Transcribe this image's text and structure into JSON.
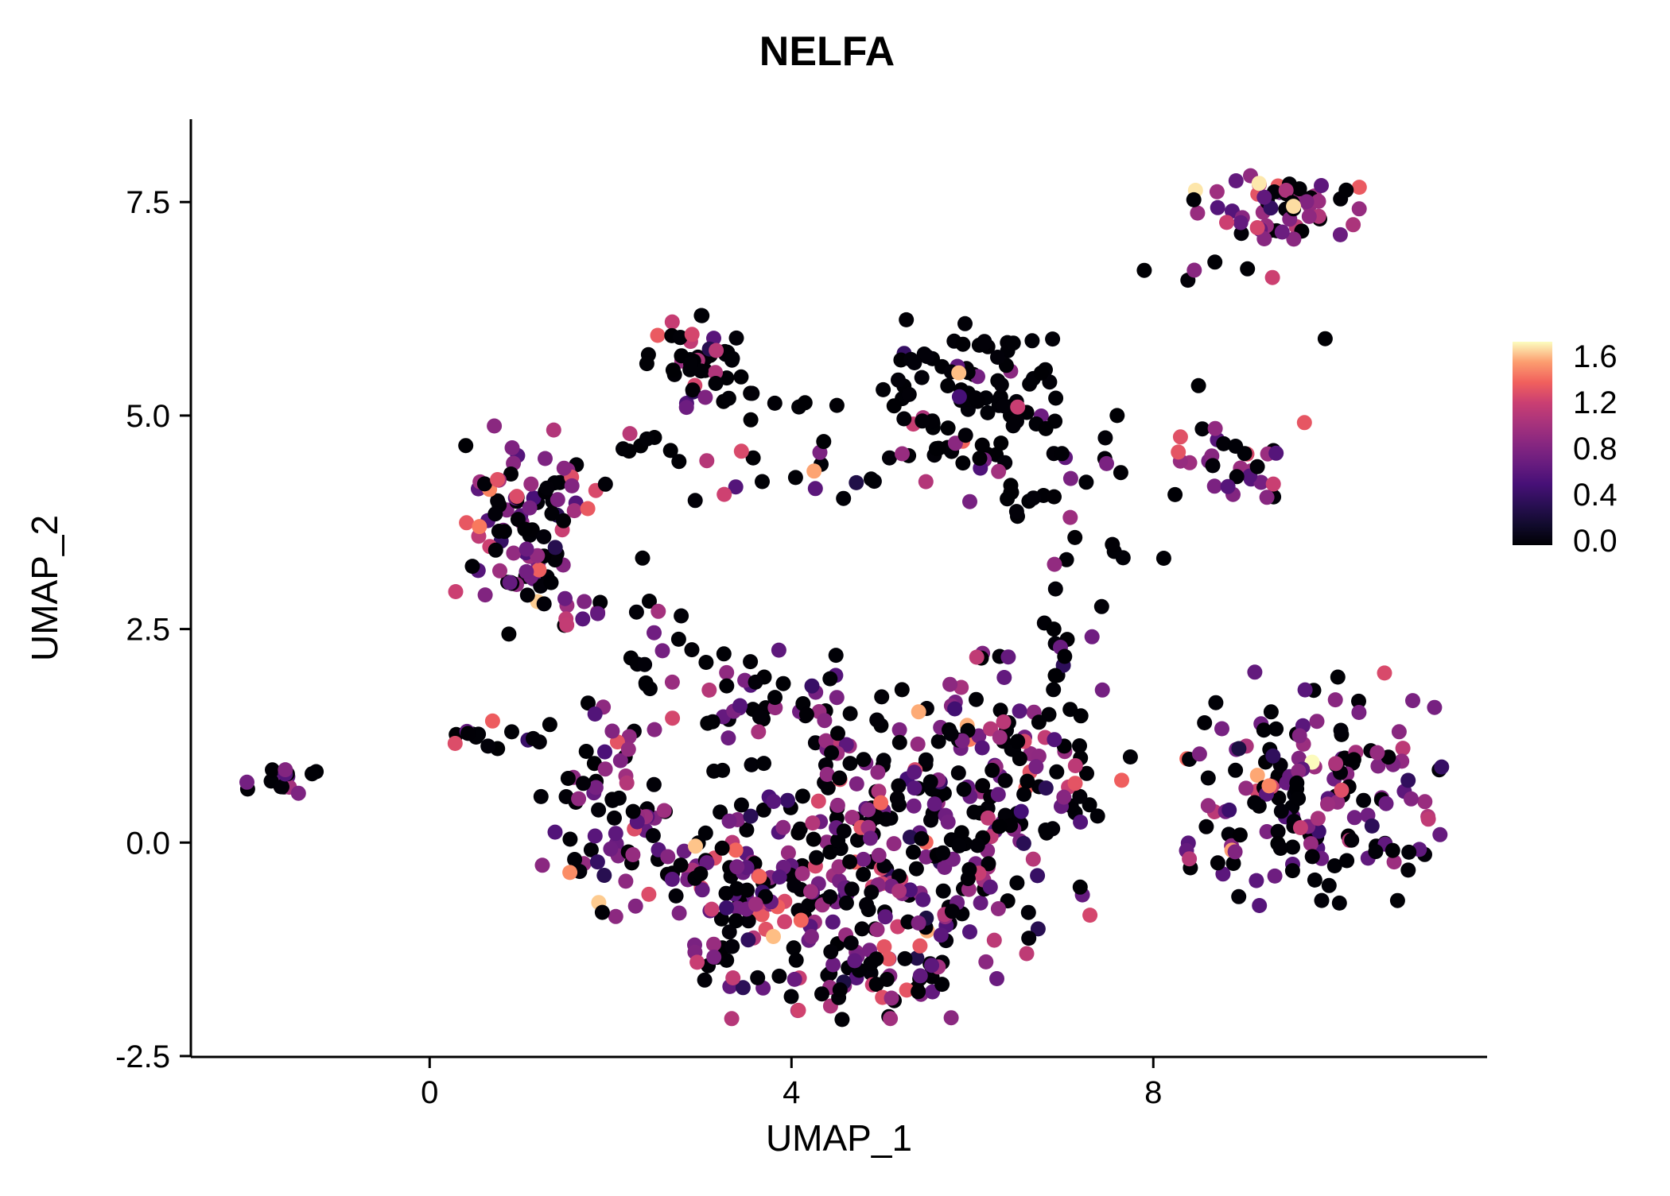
{
  "title": "NELFA",
  "background_color": "#ffffff",
  "seed": 42,
  "chart_data": {
    "type": "scatter",
    "title": "NELFA",
    "xlabel": "UMAP_1",
    "ylabel": "UMAP_2",
    "xlim": [
      -2.64,
      11.69
    ],
    "ylim": [
      -2.51,
      8.47
    ],
    "grid": false,
    "point_radius_px": 9.5,
    "x_ticks": [
      {
        "v": 0,
        "label": "0"
      },
      {
        "v": 4,
        "label": "4"
      },
      {
        "v": 8,
        "label": "8"
      }
    ],
    "y_ticks": [
      {
        "v": -2.5,
        "label": "-2.5"
      },
      {
        "v": 0.0,
        "label": "0.0"
      },
      {
        "v": 2.5,
        "label": "2.5"
      },
      {
        "v": 5.0,
        "label": "5.0"
      },
      {
        "v": 7.5,
        "label": "7.5"
      }
    ],
    "colorbar": {
      "position": "right",
      "domain": [
        0.0,
        1.65
      ],
      "tick_labels": [
        "1.6",
        "1.2",
        "0.8",
        "0.4",
        "0.0"
      ]
    },
    "colormap": {
      "name": "magma",
      "stops": [
        [
          0.0,
          "#000004"
        ],
        [
          0.14,
          "#180f3d"
        ],
        [
          0.29,
          "#440f76"
        ],
        [
          0.43,
          "#721f81"
        ],
        [
          0.57,
          "#9e2f7f"
        ],
        [
          0.71,
          "#cd4071"
        ],
        [
          0.8,
          "#f1605d"
        ],
        [
          0.86,
          "#fa7f5e"
        ],
        [
          0.93,
          "#feb47b"
        ],
        [
          1.0,
          "#fcfdbf"
        ]
      ]
    },
    "value_bands": {
      "zero": [
        0.0,
        0.02
      ],
      "low": [
        0.25,
        0.55
      ],
      "mid": [
        0.55,
        0.95
      ],
      "high": [
        0.95,
        1.35
      ],
      "peak": [
        1.35,
        1.65
      ]
    },
    "band_order": [
      "zero",
      "low",
      "mid",
      "high",
      "peak"
    ],
    "clusters": [
      {
        "name": "top-right-main",
        "center": [
          9.45,
          7.45
        ],
        "spread": [
          0.55,
          0.25
        ],
        "n": 55,
        "weights": [
          0.45,
          0.05,
          0.25,
          0.2,
          0.05
        ]
      },
      {
        "name": "top-right-fringe",
        "center": [
          9.0,
          6.6
        ],
        "spread": [
          0.35,
          0.25
        ],
        "n": 5,
        "weights": [
          0.7,
          0.0,
          0.2,
          0.1,
          0.0
        ]
      },
      {
        "name": "right-upper",
        "center": [
          8.9,
          4.45
        ],
        "spread": [
          0.4,
          0.3
        ],
        "n": 32,
        "weights": [
          0.4,
          0.05,
          0.3,
          0.25,
          0.0
        ]
      },
      {
        "name": "top-middle",
        "center": [
          3.0,
          5.65
        ],
        "spread": [
          0.35,
          0.3
        ],
        "n": 40,
        "weights": [
          0.82,
          0.03,
          0.08,
          0.07,
          0.0
        ]
      },
      {
        "name": "top-middle-tail",
        "center": [
          3.6,
          5.15
        ],
        "spread": [
          0.5,
          0.18
        ],
        "n": 10,
        "weights": [
          0.9,
          0.0,
          0.1,
          0.0,
          0.0
        ]
      },
      {
        "name": "upper-central",
        "center": [
          6.0,
          5.3
        ],
        "spread": [
          0.55,
          0.45
        ],
        "n": 85,
        "weights": [
          0.88,
          0.02,
          0.05,
          0.04,
          0.01
        ]
      },
      {
        "name": "upper-central-south",
        "center": [
          6.5,
          4.4
        ],
        "spread": [
          0.7,
          0.4
        ],
        "n": 30,
        "weights": [
          0.8,
          0.0,
          0.15,
          0.05,
          0.0
        ]
      },
      {
        "name": "left-cluster",
        "center": [
          1.1,
          3.85
        ],
        "spread": [
          0.45,
          0.55
        ],
        "n": 85,
        "weights": [
          0.42,
          0.05,
          0.38,
          0.14,
          0.01
        ]
      },
      {
        "name": "left-cluster-south",
        "center": [
          1.5,
          2.8
        ],
        "spread": [
          0.5,
          0.35
        ],
        "n": 25,
        "weights": [
          0.5,
          0.05,
          0.35,
          0.1,
          0.0
        ]
      },
      {
        "name": "far-left",
        "center": [
          -1.6,
          0.72
        ],
        "spread": [
          0.28,
          0.1
        ],
        "n": 16,
        "weights": [
          0.5,
          0.05,
          0.4,
          0.05,
          0.0
        ]
      },
      {
        "name": "left-arm",
        "center": [
          0.7,
          1.25
        ],
        "spread": [
          0.35,
          0.15
        ],
        "n": 14,
        "weights": [
          0.5,
          0.05,
          0.35,
          0.1,
          0.0
        ]
      },
      {
        "name": "central-west",
        "center": [
          2.0,
          0.4
        ],
        "spread": [
          0.45,
          0.8
        ],
        "n": 70,
        "weights": [
          0.45,
          0.05,
          0.38,
          0.11,
          0.01
        ]
      },
      {
        "name": "central-1",
        "center": [
          3.2,
          -0.5
        ],
        "spread": [
          0.6,
          0.75
        ],
        "n": 85,
        "weights": [
          0.45,
          0.05,
          0.36,
          0.13,
          0.01
        ]
      },
      {
        "name": "central-2",
        "center": [
          4.5,
          -0.55
        ],
        "spread": [
          0.6,
          0.75
        ],
        "n": 95,
        "weights": [
          0.43,
          0.05,
          0.38,
          0.13,
          0.01
        ]
      },
      {
        "name": "central-3",
        "center": [
          5.6,
          -0.5
        ],
        "spread": [
          0.6,
          0.8
        ],
        "n": 95,
        "weights": [
          0.45,
          0.05,
          0.36,
          0.13,
          0.01
        ]
      },
      {
        "name": "central-4",
        "center": [
          5.0,
          0.8
        ],
        "spread": [
          0.8,
          0.6
        ],
        "n": 85,
        "weights": [
          0.46,
          0.05,
          0.37,
          0.11,
          0.01
        ]
      },
      {
        "name": "central-east",
        "center": [
          6.35,
          1.2
        ],
        "spread": [
          0.6,
          0.7
        ],
        "n": 75,
        "weights": [
          0.5,
          0.05,
          0.33,
          0.11,
          0.01
        ]
      },
      {
        "name": "central-north",
        "center": [
          3.6,
          1.6
        ],
        "spread": [
          0.7,
          0.5
        ],
        "n": 45,
        "weights": [
          0.5,
          0.05,
          0.35,
          0.1,
          0.0
        ]
      },
      {
        "name": "central-south-rim",
        "center": [
          4.7,
          -1.6
        ],
        "spread": [
          0.85,
          0.3
        ],
        "n": 45,
        "weights": [
          0.5,
          0.04,
          0.36,
          0.1,
          0.0
        ]
      },
      {
        "name": "central-far-east",
        "center": [
          7.0,
          0.3
        ],
        "spread": [
          0.4,
          0.7
        ],
        "n": 25,
        "weights": [
          0.6,
          0.05,
          0.25,
          0.1,
          0.0
        ]
      },
      {
        "name": "right-main",
        "center": [
          9.7,
          0.65
        ],
        "spread": [
          0.75,
          0.75
        ],
        "n": 150,
        "weights": [
          0.5,
          0.04,
          0.33,
          0.11,
          0.02
        ]
      },
      {
        "name": "right-edge",
        "center": [
          10.8,
          0.1
        ],
        "spread": [
          0.3,
          0.5
        ],
        "n": 15,
        "weights": [
          0.55,
          0.05,
          0.3,
          0.1,
          0.0
        ]
      },
      {
        "name": "bridge-upper",
        "center": [
          4.3,
          4.35
        ],
        "spread": [
          1.0,
          0.22
        ],
        "n": 22,
        "weights": [
          0.6,
          0.05,
          0.2,
          0.15,
          0.0
        ]
      },
      {
        "name": "bridge-left",
        "center": [
          2.5,
          2.4
        ],
        "spread": [
          0.25,
          0.55
        ],
        "n": 12,
        "weights": [
          0.6,
          0.0,
          0.3,
          0.1,
          0.0
        ]
      },
      {
        "name": "sparse-mid-right",
        "center": [
          7.5,
          3.1
        ],
        "spread": [
          0.45,
          0.5
        ],
        "n": 12,
        "weights": [
          0.85,
          0.0,
          0.1,
          0.05,
          0.0
        ]
      },
      {
        "name": "sparse-upper-left",
        "center": [
          2.4,
          4.6
        ],
        "spread": [
          0.3,
          0.3
        ],
        "n": 8,
        "weights": [
          0.7,
          0.0,
          0.2,
          0.1,
          0.0
        ]
      }
    ],
    "highlight_points": [
      [
        5.85,
        5.5,
        1.55
      ],
      [
        4.25,
        4.35,
        1.5
      ],
      [
        9.55,
        7.45,
        1.6
      ],
      [
        3.8,
        -1.1,
        1.55
      ],
      [
        1.55,
        -0.35,
        1.45
      ],
      [
        0.55,
        3.7,
        1.4
      ],
      [
        0.75,
        4.25,
        1.25
      ],
      [
        9.15,
        7.2,
        1.2
      ],
      [
        2.9,
        5.95,
        1.2
      ],
      [
        6.5,
        5.1,
        1.15
      ],
      [
        8.3,
        4.75,
        1.25
      ],
      [
        7.3,
        -0.85,
        1.2
      ],
      [
        6.6,
        -1.3,
        1.1
      ],
      [
        7.9,
        6.7,
        0
      ],
      [
        9.9,
        5.9,
        0
      ],
      [
        4.15,
        5.15,
        0
      ],
      [
        3.55,
        4.95,
        0
      ],
      [
        8.5,
        5.35,
        0
      ],
      [
        7.6,
        5.0,
        0
      ],
      [
        6.9,
        2.5,
        0
      ]
    ]
  }
}
